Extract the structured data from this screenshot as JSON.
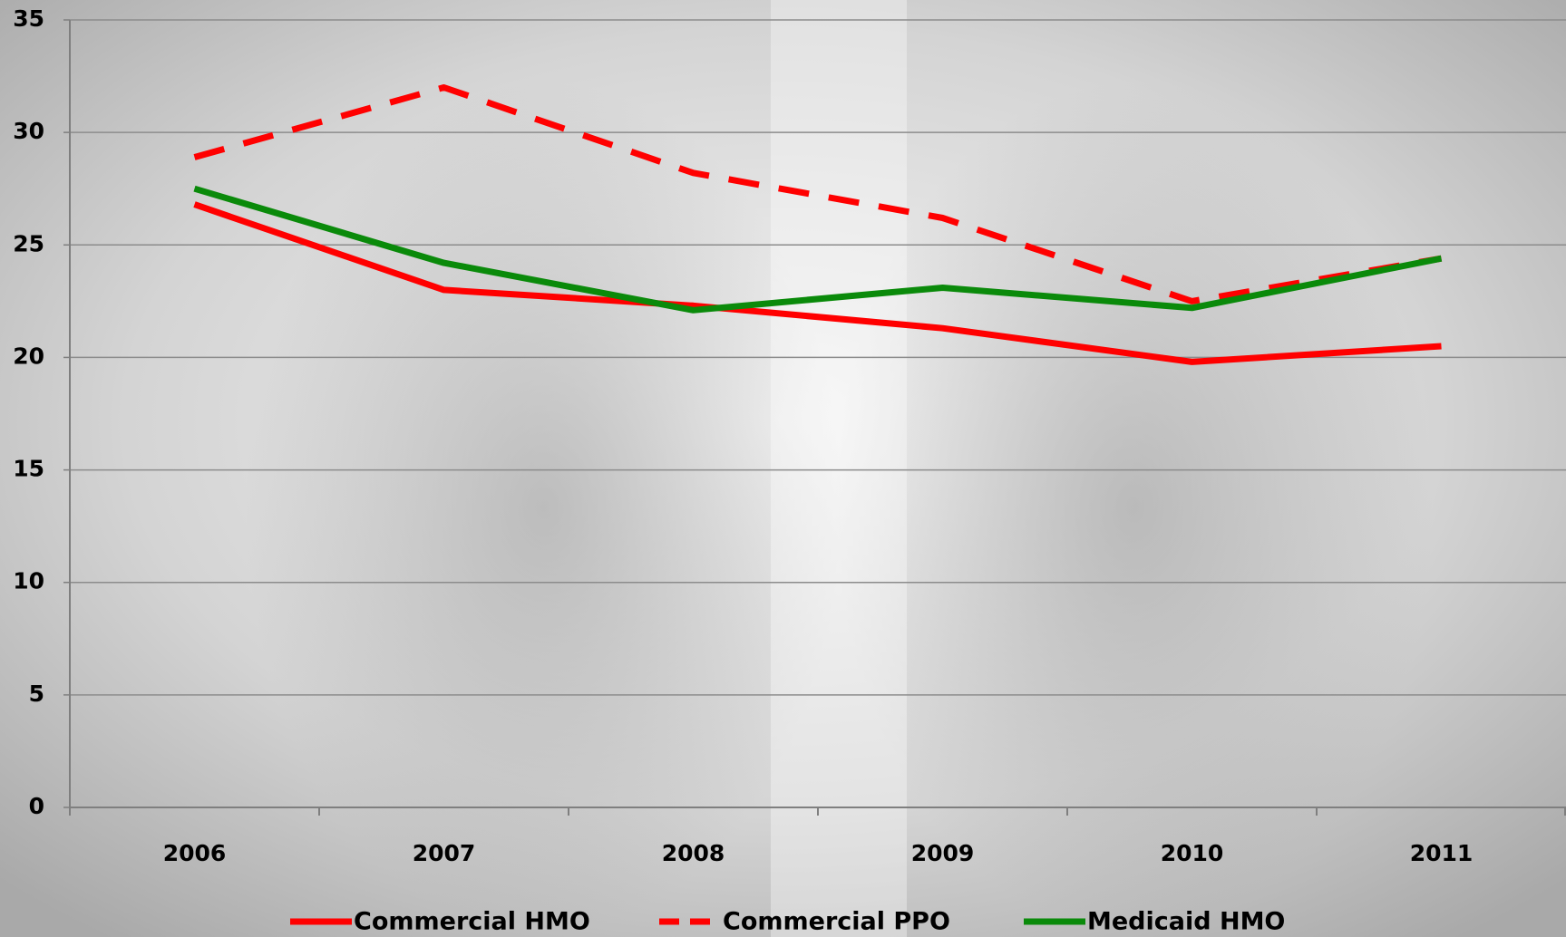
{
  "chart_data": {
    "type": "line",
    "categories": [
      "2006",
      "2007",
      "2008",
      "2009",
      "2010",
      "2011"
    ],
    "series": [
      {
        "name": "Commercial HMO",
        "color": "#ff0000",
        "dash": false,
        "values": [
          26.8,
          23.0,
          22.3,
          21.3,
          19.8,
          20.5
        ]
      },
      {
        "name": "Commercial PPO",
        "color": "#ff0000",
        "dash": true,
        "values": [
          28.9,
          32.0,
          28.2,
          26.2,
          22.5,
          24.4
        ]
      },
      {
        "name": "Medicaid HMO",
        "color": "#0a8a0a",
        "dash": false,
        "values": [
          27.5,
          24.2,
          22.1,
          23.1,
          22.2,
          24.4
        ]
      }
    ],
    "ylim": [
      0,
      35
    ],
    "yticks": [
      0,
      5,
      10,
      15,
      20,
      25,
      30,
      35
    ],
    "grid": true,
    "legend": "bottom"
  }
}
